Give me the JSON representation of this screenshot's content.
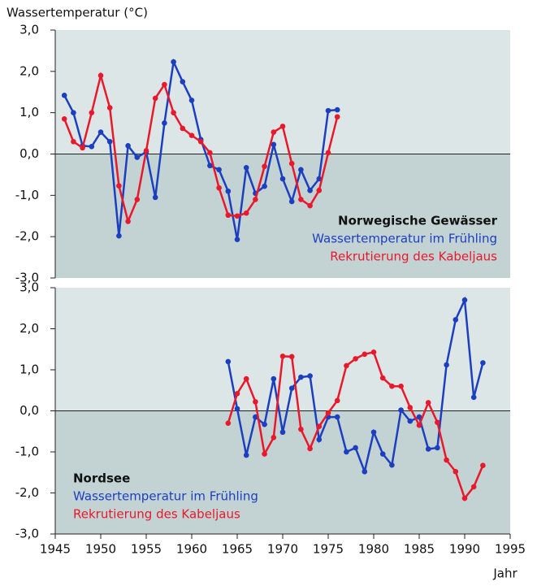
{
  "chart_data": [
    {
      "type": "line",
      "title": "Norwegische Gewässer",
      "y_label": "Wassertemperatur (°C)",
      "x": [
        1946,
        1947,
        1948,
        1949,
        1950,
        1951,
        1952,
        1953,
        1954,
        1955,
        1956,
        1957,
        1958,
        1959,
        1960,
        1961,
        1962,
        1963,
        1964,
        1965,
        1966,
        1967,
        1968,
        1969,
        1970,
        1971,
        1972,
        1973,
        1974,
        1975,
        1976
      ],
      "series": [
        {
          "name": "Wassertemperatur im Frühling",
          "color": "#1c3fbf",
          "values": [
            1.42,
            1.0,
            0.2,
            0.18,
            0.53,
            0.3,
            -1.98,
            0.2,
            -0.08,
            0.05,
            -1.05,
            0.75,
            2.23,
            1.75,
            1.3,
            0.35,
            -0.28,
            -0.38,
            -0.9,
            -2.07,
            -0.33,
            -0.95,
            -0.78,
            0.23,
            -0.6,
            -1.15,
            -0.38,
            -0.88,
            -0.6,
            1.05,
            1.07
          ]
        },
        {
          "name": "Rekrutierung des Kabeljaus",
          "color": "#e8192c",
          "values": [
            0.85,
            0.3,
            0.15,
            1.0,
            1.9,
            1.12,
            -0.77,
            -1.63,
            -1.1,
            0.08,
            1.35,
            1.68,
            1.0,
            0.62,
            0.45,
            0.3,
            0.03,
            -0.82,
            -1.48,
            -1.5,
            -1.43,
            -1.1,
            -0.3,
            0.53,
            0.67,
            -0.23,
            -1.1,
            -1.25,
            -0.88,
            0.03,
            0.9
          ]
        }
      ],
      "xlim": [
        1945,
        1995
      ],
      "ylim": [
        -3,
        3
      ],
      "yticks": [
        {
          "value": -3,
          "label": "-3,0"
        },
        {
          "value": -2,
          "label": "-2,0"
        },
        {
          "value": -1,
          "label": "-1,0"
        },
        {
          "value": 0,
          "label": "0,0"
        },
        {
          "value": 1,
          "label": "1,0"
        },
        {
          "value": 2,
          "label": "2,0"
        },
        {
          "value": 3,
          "label": "3,0"
        }
      ],
      "legend": "lower right"
    },
    {
      "type": "line",
      "title": "Nordsee",
      "x_label": "Jahr",
      "x": [
        1964,
        1965,
        1966,
        1967,
        1968,
        1969,
        1970,
        1971,
        1972,
        1973,
        1974,
        1975,
        1976,
        1977,
        1978,
        1979,
        1980,
        1981,
        1982,
        1983,
        1984,
        1985,
        1986,
        1987,
        1988,
        1989,
        1990,
        1991,
        1992
      ],
      "series": [
        {
          "name": "Wassertemperatur im Frühling",
          "color": "#1c3fbf",
          "values": [
            1.2,
            0.05,
            -1.08,
            -0.15,
            -0.33,
            0.78,
            -0.52,
            0.55,
            0.82,
            0.85,
            -0.7,
            -0.15,
            -0.15,
            -1.0,
            -0.9,
            -1.48,
            -0.52,
            -1.05,
            -1.32,
            0.02,
            -0.25,
            -0.15,
            -0.93,
            -0.9,
            1.12,
            2.22,
            2.7,
            0.33,
            1.17
          ]
        },
        {
          "name": "Rekrutierung des Kabeljaus",
          "color": "#e8192c",
          "values": [
            -0.3,
            0.42,
            0.78,
            0.22,
            -1.05,
            -0.65,
            1.33,
            1.32,
            -0.45,
            -0.92,
            -0.38,
            -0.05,
            0.25,
            1.1,
            1.27,
            1.38,
            1.43,
            0.8,
            0.6,
            0.6,
            0.08,
            -0.35,
            0.2,
            -0.28,
            -1.2,
            -1.48,
            -2.13,
            -1.85,
            -1.33
          ]
        }
      ],
      "xlim": [
        1945,
        1995
      ],
      "ylim": [
        -3,
        3
      ],
      "xticks": [
        1945,
        1950,
        1955,
        1960,
        1965,
        1970,
        1975,
        1980,
        1985,
        1990,
        1995
      ],
      "yticks": [
        {
          "value": -3,
          "label": "-3,0"
        },
        {
          "value": -2,
          "label": "-2,0"
        },
        {
          "value": -1,
          "label": "-1,0"
        },
        {
          "value": 0,
          "label": "0,0"
        },
        {
          "value": 1,
          "label": "1,0"
        },
        {
          "value": 2,
          "label": "2,0"
        },
        {
          "value": 3,
          "label": "3,0"
        }
      ],
      "legend": "lower left"
    }
  ]
}
